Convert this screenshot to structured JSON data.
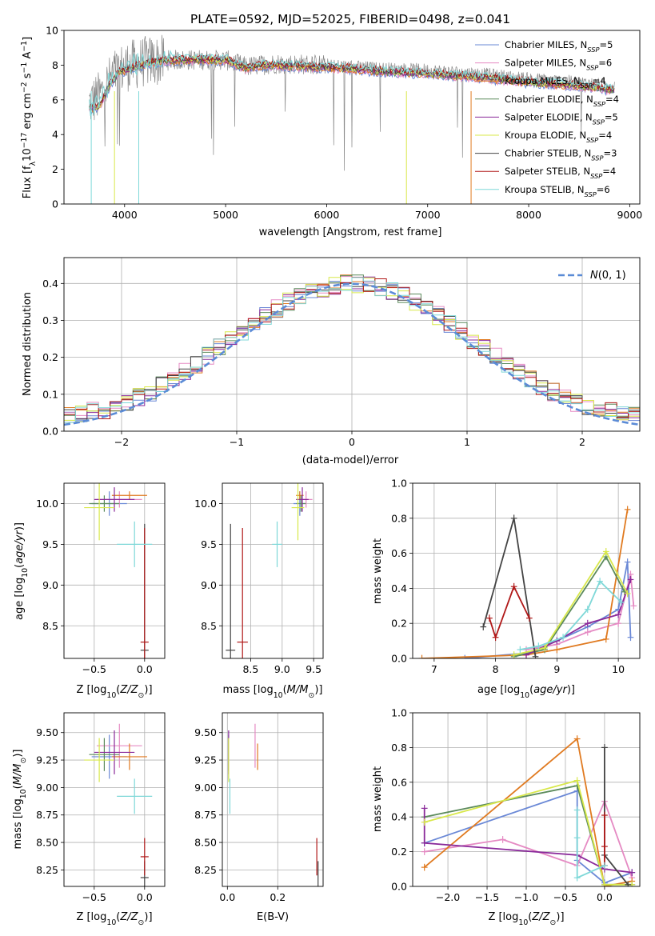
{
  "figure": {
    "title": "PLATE=0592, MJD=52025, FIBERID=0498, z=0.041"
  },
  "colors": {
    "c1": "#6a88d6",
    "c2": "#e58ac3",
    "c3": "#e07a20",
    "c4": "#5b8a5b",
    "c5": "#8a2a9a",
    "c6": "#d8e84a",
    "c7": "#444444",
    "c8": "#b01818",
    "c9": "#7fd8d8",
    "data": "#888888",
    "gauss": "#5b8bd6"
  },
  "chart_data": [
    {
      "id": "spectrum",
      "type": "line",
      "xlabel": "wavelength [Angstrom, rest frame]",
      "ylabel": "Flux [f_λ10^-17 erg cm^-2 s^-1 A^-1]",
      "xlim": [
        3400,
        9100
      ],
      "ylim": [
        0,
        10
      ],
      "xticks": [
        4000,
        5000,
        6000,
        7000,
        8000,
        9000
      ],
      "yticks": [
        0,
        2,
        4,
        6,
        8,
        10
      ],
      "grid": false,
      "legend_position": "top-right",
      "data_continuum": [
        [
          3650,
          5.8
        ],
        [
          3750,
          6.2
        ],
        [
          3900,
          7.5
        ],
        [
          4000,
          7.9
        ],
        [
          4200,
          8.2
        ],
        [
          4500,
          8.3
        ],
        [
          5000,
          8.3
        ],
        [
          5200,
          7.9
        ],
        [
          5500,
          8.1
        ],
        [
          6000,
          8.0
        ],
        [
          6500,
          7.8
        ],
        [
          7000,
          7.7
        ],
        [
          7500,
          7.5
        ],
        [
          8000,
          7.2
        ],
        [
          8500,
          7.0
        ],
        [
          8800,
          6.8
        ]
      ],
      "model_continuum": [
        [
          3650,
          5.5
        ],
        [
          3750,
          5.6
        ],
        [
          3850,
          6.8
        ],
        [
          3950,
          7.6
        ],
        [
          4100,
          7.9
        ],
        [
          4300,
          8.2
        ],
        [
          4600,
          8.3
        ],
        [
          5000,
          8.3
        ],
        [
          5200,
          7.8
        ],
        [
          5400,
          8.0
        ],
        [
          5800,
          7.9
        ],
        [
          6200,
          7.8
        ],
        [
          6600,
          7.6
        ],
        [
          7000,
          7.5
        ],
        [
          7500,
          7.3
        ],
        [
          8000,
          7.0
        ],
        [
          8500,
          6.8
        ],
        [
          8800,
          6.6
        ]
      ],
      "legend": [
        {
          "label": "Chabrier MILES, N_SSP=5",
          "color": "#6a88d6"
        },
        {
          "label": "Salpeter MILES, N_SSP=6",
          "color": "#e58ac3"
        },
        {
          "label": "Kroupa MILES, N_SSP=4",
          "color": "#e07a20"
        },
        {
          "label": "Chabrier ELODIE, N_SSP=4",
          "color": "#5b8a5b"
        },
        {
          "label": "Salpeter ELODIE, N_SSP=5",
          "color": "#8a2a9a"
        },
        {
          "label": "Kroupa ELODIE, N_SSP=4",
          "color": "#d8e84a"
        },
        {
          "label": "Chabrier STELIB, N_SSP=3",
          "color": "#444444"
        },
        {
          "label": "Salpeter STELIB, N_SSP=4",
          "color": "#b01818"
        },
        {
          "label": "Kroupa STELIB, N_SSP=6",
          "color": "#7fd8d8"
        }
      ]
    },
    {
      "id": "residuals",
      "type": "histogram",
      "xlabel": "(data-model)/error",
      "ylabel": "Normed distribution",
      "xlim": [
        -2.5,
        2.5
      ],
      "ylim": [
        0,
        0.47
      ],
      "xticks": [
        -2,
        -1,
        0,
        1,
        2
      ],
      "yticks": [
        0.0,
        0.1,
        0.2,
        0.3,
        0.4
      ],
      "grid": true,
      "legend_position": "top-right",
      "gauss_label": "N(0, 1)",
      "bin_width": 0.1,
      "bin_start": -2.5
    },
    {
      "id": "age_vs_Z",
      "type": "scatter",
      "xlabel": "Z [log10(Z/Z_sun)]",
      "ylabel": "age [log10(age/yr)]",
      "xlim": [
        -0.8,
        0.2
      ],
      "ylim": [
        8.1,
        10.25
      ],
      "xticks": [
        -0.5,
        0.0
      ],
      "yticks": [
        8.5,
        9.0,
        9.5,
        10.0
      ],
      "grid": true
    },
    {
      "id": "age_vs_mass",
      "type": "scatter",
      "xlabel": "mass [log10(M/M_sun)]",
      "ylabel": "",
      "xlim": [
        8.05,
        9.65
      ],
      "ylim": [
        8.1,
        10.25
      ],
      "xticks": [
        8.5,
        9.0,
        9.5
      ],
      "yticks": [
        8.5,
        9.0,
        9.5,
        10.0
      ],
      "grid": true
    },
    {
      "id": "weight_vs_age",
      "type": "line",
      "xlabel": "age [log10(age/yr)]",
      "ylabel": "mass weight",
      "xlim": [
        6.65,
        10.35
      ],
      "ylim": [
        0,
        1
      ],
      "xticks": [
        7,
        8,
        9,
        10
      ],
      "yticks": [
        0.0,
        0.2,
        0.4,
        0.6,
        0.8,
        1.0
      ],
      "grid": true
    },
    {
      "id": "mass_vs_Z",
      "type": "scatter",
      "xlabel": "Z [log10(Z/Z_sun)]",
      "ylabel": "mass [log10(M/M_sun)]",
      "xlim": [
        -0.8,
        0.2
      ],
      "ylim": [
        8.1,
        9.68
      ],
      "xticks": [
        -0.5,
        0.0
      ],
      "yticks": [
        8.25,
        8.5,
        8.75,
        9.0,
        9.25,
        9.5
      ],
      "grid": true
    },
    {
      "id": "mass_vs_ebv",
      "type": "scatter",
      "xlabel": "E(B-V)",
      "ylabel": "",
      "xlim": [
        -0.02,
        0.38
      ],
      "ylim": [
        8.1,
        9.68
      ],
      "xticks": [
        0.0,
        0.2
      ],
      "yticks": [
        8.25,
        8.5,
        8.75,
        9.0,
        9.25,
        9.5
      ],
      "grid": true
    },
    {
      "id": "weight_vs_Z",
      "type": "line",
      "xlabel": "Z [log10(Z/Z_sun)]",
      "ylabel": "mass weight",
      "xlim": [
        -2.45,
        0.45
      ],
      "ylim": [
        0,
        1
      ],
      "xticks": [
        -2.0,
        -1.5,
        -1.0,
        -0.5,
        0.0
      ],
      "yticks": [
        0.0,
        0.2,
        0.4,
        0.6,
        0.8,
        1.0
      ],
      "grid": true
    }
  ],
  "models": [
    {
      "name": "Chabrier MILES",
      "color": "#6a88d6",
      "Z": -0.35,
      "Zerr": 0.35,
      "age": 10.0,
      "ageerr": 0.15,
      "mass": 9.28,
      "masserr": 0.2,
      "ebv": 0.005,
      "age_w": [
        [
          7.5,
          0.0
        ],
        [
          8.5,
          0.03
        ],
        [
          9.0,
          0.1
        ],
        [
          9.5,
          0.18
        ],
        [
          10.0,
          0.28
        ],
        [
          10.15,
          0.55
        ],
        [
          10.2,
          0.12
        ]
      ],
      "Z_w": [
        [
          -2.3,
          0.25
        ],
        [
          -0.35,
          0.55
        ],
        [
          -0.35,
          0.15
        ],
        [
          0.0,
          0.02
        ],
        [
          0.35,
          0.08
        ]
      ]
    },
    {
      "name": "Salpeter MILES",
      "color": "#e58ac3",
      "Z": -0.25,
      "Zerr": 0.45,
      "age": 10.05,
      "ageerr": 0.1,
      "mass": 9.38,
      "masserr": 0.2,
      "ebv": 0.11,
      "age_w": [
        [
          8.5,
          0.05
        ],
        [
          9.0,
          0.08
        ],
        [
          9.5,
          0.15
        ],
        [
          10.0,
          0.2
        ],
        [
          10.2,
          0.48
        ],
        [
          10.25,
          0.3
        ]
      ],
      "Z_w": [
        [
          -2.3,
          0.2
        ],
        [
          -1.3,
          0.27
        ],
        [
          -0.35,
          0.12
        ],
        [
          0.0,
          0.49
        ],
        [
          0.35,
          0.05
        ]
      ]
    },
    {
      "name": "Kroupa MILES",
      "color": "#e07a20",
      "Z": -0.15,
      "Zerr": 0.35,
      "age": 10.1,
      "ageerr": 0.05,
      "mass": 9.28,
      "masserr": 0.12,
      "ebv": 0.12,
      "age_w": [
        [
          6.8,
          0.0
        ],
        [
          8.5,
          0.02
        ],
        [
          9.0,
          0.05
        ],
        [
          9.8,
          0.11
        ],
        [
          10.15,
          0.85
        ]
      ],
      "Z_w": [
        [
          -2.3,
          0.11
        ],
        [
          -0.35,
          0.85
        ],
        [
          0.0,
          0.0
        ],
        [
          0.35,
          0.03
        ]
      ]
    },
    {
      "name": "Chabrier ELODIE",
      "color": "#5b8a5b",
      "Z": -0.4,
      "Zerr": 0.3,
      "age": 10.0,
      "ageerr": 0.1,
      "mass": 9.3,
      "masserr": 0.15,
      "ebv": 0.005,
      "age_w": [
        [
          8.3,
          0.01
        ],
        [
          8.8,
          0.05
        ],
        [
          9.8,
          0.58
        ],
        [
          10.1,
          0.38
        ]
      ],
      "Z_w": [
        [
          -2.3,
          0.4
        ],
        [
          -0.35,
          0.58
        ],
        [
          0.0,
          0.01
        ],
        [
          0.35,
          0.01
        ]
      ]
    },
    {
      "name": "Salpeter ELODIE",
      "color": "#8a2a9a",
      "Z": -0.3,
      "Zerr": 0.4,
      "age": 10.05,
      "ageerr": 0.15,
      "mass": 9.32,
      "masserr": 0.2,
      "ebv": 0.005,
      "age_w": [
        [
          8.5,
          0.02
        ],
        [
          9.0,
          0.1
        ],
        [
          9.5,
          0.2
        ],
        [
          10.0,
          0.25
        ],
        [
          10.2,
          0.45
        ]
      ],
      "Z_w": [
        [
          -2.3,
          0.45
        ],
        [
          -2.3,
          0.25
        ],
        [
          -0.35,
          0.18
        ],
        [
          0.0,
          0.1
        ],
        [
          0.35,
          0.08
        ]
      ]
    },
    {
      "name": "Kroupa ELODIE",
      "color": "#d8e84a",
      "Z": -0.45,
      "Zerr": 0.3,
      "age": 9.95,
      "ageerr": 0.4,
      "mass": 9.25,
      "masserr": 0.2,
      "ebv": 0.005,
      "age_w": [
        [
          8.3,
          0.02
        ],
        [
          8.8,
          0.06
        ],
        [
          9.8,
          0.61
        ],
        [
          10.15,
          0.37
        ]
      ],
      "Z_w": [
        [
          -2.3,
          0.37
        ],
        [
          -0.35,
          0.61
        ],
        [
          0.0,
          0.01
        ],
        [
          0.35,
          0.01
        ]
      ]
    },
    {
      "name": "Chabrier STELIB",
      "color": "#444444",
      "Z": 0.0,
      "Zerr": 0.08,
      "age": 8.2,
      "ageerr": 1.55,
      "mass": 8.18,
      "masserr": 0.15,
      "ebv": 0.36,
      "age_w": [
        [
          7.8,
          0.18
        ],
        [
          8.3,
          0.8
        ],
        [
          8.65,
          0.01
        ]
      ],
      "Z_w": [
        [
          0.0,
          0.8
        ],
        [
          0.0,
          0.18
        ],
        [
          0.3,
          0.01
        ]
      ]
    },
    {
      "name": "Salpeter STELIB",
      "color": "#b01818",
      "Z": 0.0,
      "Zerr": 0.08,
      "age": 8.3,
      "ageerr": 1.4,
      "mass": 8.37,
      "masserr": 0.17,
      "ebv": 0.355,
      "age_w": [
        [
          7.9,
          0.23
        ],
        [
          8.0,
          0.12
        ],
        [
          8.3,
          0.41
        ],
        [
          8.55,
          0.23
        ]
      ],
      "Z_w": [
        [
          0.0,
          0.41
        ],
        [
          0.0,
          0.23
        ],
        [
          0.0,
          0.12
        ]
      ]
    },
    {
      "name": "Kroupa STELIB",
      "color": "#7fd8d8",
      "Z": -0.1,
      "Zerr": 0.35,
      "age": 9.5,
      "ageerr": 0.28,
      "mass": 8.92,
      "masserr": 0.16,
      "ebv": 0.01,
      "age_w": [
        [
          8.4,
          0.05
        ],
        [
          8.7,
          0.07
        ],
        [
          9.1,
          0.12
        ],
        [
          9.5,
          0.28
        ],
        [
          9.7,
          0.44
        ],
        [
          10.05,
          0.32
        ]
      ],
      "Z_w": [
        [
          -0.35,
          0.44
        ],
        [
          -0.35,
          0.28
        ],
        [
          -0.35,
          0.05
        ],
        [
          0.0,
          0.12
        ]
      ]
    }
  ]
}
